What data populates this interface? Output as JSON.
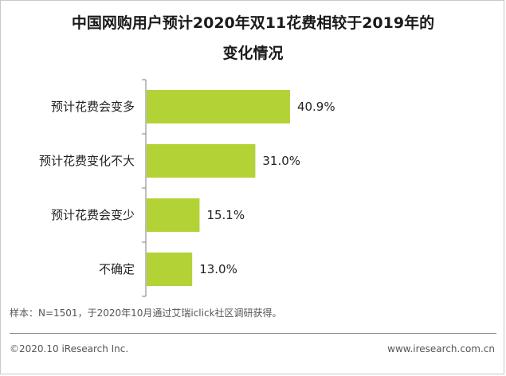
{
  "chart_data": {
    "type": "bar",
    "orientation": "horizontal",
    "title_lines": [
      "中国网购用户预计2020年双11花费相较于2019年的",
      "变化情况"
    ],
    "categories": [
      "预计花费会变多",
      "预计花费变化不大",
      "预计花费会变少",
      "不确定"
    ],
    "values": [
      40.9,
      31.0,
      15.1,
      13.0
    ],
    "data_labels": [
      "40.9%",
      "31.0%",
      "15.1%",
      "13.0%"
    ],
    "unit": "%",
    "xlim": [
      0,
      100
    ],
    "grid": false,
    "legend": "none",
    "bar_color": "#b2d235"
  },
  "footer": {
    "note": "样本：N=1501，于2020年10月通过艾瑞iclick社区调研获得。",
    "copyright": "©2020.10 iResearch Inc.",
    "site": "www.iresearch.com.cn"
  }
}
